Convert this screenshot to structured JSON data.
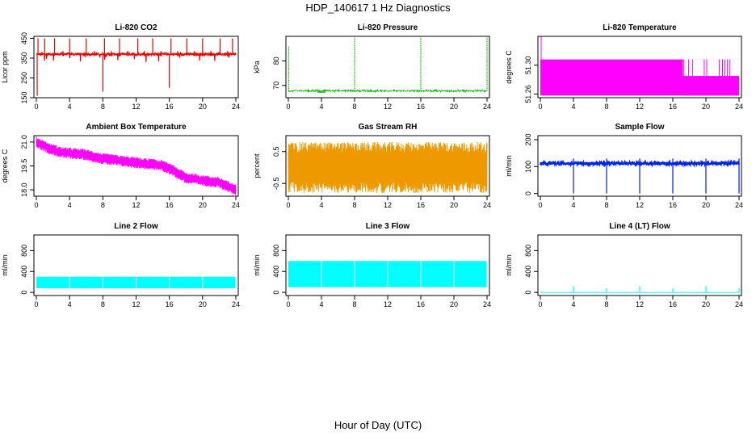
{
  "page": {
    "title": "HDP_140617  1 Hz Diagnostics",
    "xlabel": "Hour of Day (UTC)"
  },
  "chart_data": [
    {
      "id": "co2",
      "type": "line",
      "title": "Li-820 CO2",
      "ylabel": "Licor ppm",
      "color": "#ee0000",
      "xlim": [
        0,
        24
      ],
      "ylim": [
        150,
        460
      ],
      "yticks": [
        150,
        250,
        350,
        450
      ],
      "xticks": [
        0,
        4,
        8,
        12,
        16,
        20,
        24
      ],
      "series_kind": "co2"
    },
    {
      "id": "pressure",
      "type": "line",
      "title": "Li-820 Pressure",
      "ylabel": "kPa",
      "color": "#00bb00",
      "xlim": [
        0,
        24
      ],
      "ylim": [
        65,
        90
      ],
      "yticks": [
        70,
        80
      ],
      "xticks": [
        0,
        4,
        8,
        12,
        16,
        20,
        24
      ],
      "series_kind": "pressure"
    },
    {
      "id": "temperature",
      "type": "line",
      "title": "Li-820 Temperature",
      "ylabel": "degrees C",
      "color": "#ff00ff",
      "xlim": [
        0,
        24
      ],
      "ylim": [
        51.255,
        51.34
      ],
      "yticks": [
        51.26,
        51.3
      ],
      "ytick_labels": [
        "51.26",
        "51.30"
      ],
      "xticks": [
        0,
        4,
        8,
        12,
        16,
        20,
        24
      ],
      "series_kind": "licor_temp"
    },
    {
      "id": "box_temp",
      "type": "line",
      "title": "Ambient Box Temperature",
      "ylabel": "degrees C",
      "color": "#ff00ff",
      "xlim": [
        0,
        24
      ],
      "ylim": [
        17.6,
        21.4
      ],
      "yticks": [
        18,
        19.5,
        21
      ],
      "ytick_labels": [
        "18.0",
        "19.5",
        "21.0"
      ],
      "xticks": [
        0,
        4,
        8,
        12,
        16,
        20,
        24
      ],
      "series_kind": "box_temp"
    },
    {
      "id": "rh",
      "type": "line",
      "title": "Gas Stream RH",
      "ylabel": "percent",
      "color": "#ee9900",
      "xlim": [
        0,
        24
      ],
      "ylim": [
        -0.9,
        1.0
      ],
      "yticks": [
        -0.5,
        0.5
      ],
      "ytick_labels": [
        "-0.5",
        "0.5"
      ],
      "xticks": [
        0,
        4,
        8,
        12,
        16,
        20,
        24
      ],
      "series_kind": "rh"
    },
    {
      "id": "sample_flow",
      "type": "line",
      "title": "Sample Flow",
      "ylabel": "ml/min",
      "color": "#0022ee",
      "xlim": [
        0,
        24
      ],
      "ylim": [
        -10,
        215
      ],
      "yticks": [
        0,
        100,
        200
      ],
      "xticks": [
        0,
        4,
        8,
        12,
        16,
        20,
        24
      ],
      "series_kind": "sample_flow"
    },
    {
      "id": "line2",
      "type": "area",
      "title": "Line 2 Flow",
      "ylabel": "ml/min",
      "color": "#00ffff",
      "xlim": [
        0,
        24
      ],
      "ylim": [
        -60,
        1100
      ],
      "yticks": [
        0,
        400,
        800
      ],
      "xticks": [
        0,
        4,
        8,
        12,
        16,
        20,
        24
      ],
      "band": [
        80,
        300
      ],
      "gaps": [
        4,
        8,
        12,
        16,
        20,
        24
      ],
      "xstart": 0
    },
    {
      "id": "line3",
      "type": "area",
      "title": "Line 3 Flow",
      "ylabel": "ml/min",
      "color": "#00ffff",
      "xlim": [
        0,
        24
      ],
      "ylim": [
        -60,
        1100
      ],
      "yticks": [
        0,
        400,
        800
      ],
      "xticks": [
        0,
        4,
        8,
        12,
        16,
        20,
        24
      ],
      "band": [
        100,
        600
      ],
      "gaps": [
        4,
        8,
        12,
        16,
        20,
        24
      ],
      "xstart": 0
    },
    {
      "id": "line4",
      "type": "line",
      "title": "Line 4 (LT) Flow",
      "ylabel": "ml/min",
      "color": "#00ffff",
      "xlim": [
        0,
        24
      ],
      "ylim": [
        -60,
        1100
      ],
      "yticks": [
        0,
        400,
        800
      ],
      "xticks": [
        0,
        4,
        8,
        12,
        16,
        20,
        24
      ],
      "base": 0,
      "spikes": [
        [
          4,
          120
        ],
        [
          8,
          80
        ],
        [
          12,
          120
        ],
        [
          16,
          80
        ],
        [
          20,
          120
        ],
        [
          24,
          80
        ]
      ]
    }
  ]
}
